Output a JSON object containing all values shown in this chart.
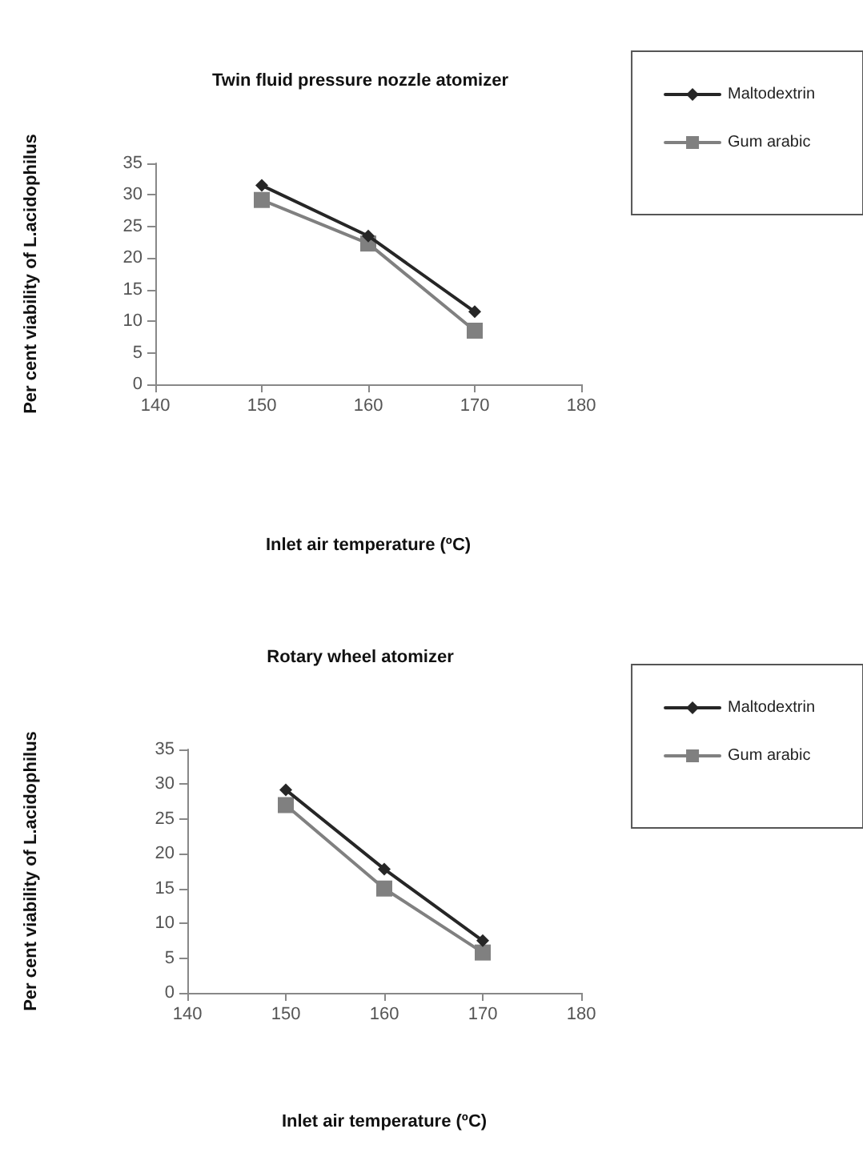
{
  "chart_data": [
    {
      "type": "line",
      "title": "Twin fluid pressure nozzle atomizer",
      "xlabel": "Inlet air temperature (ºC)",
      "ylabel": "Per cent viability of L.acidophilus",
      "x": [
        150,
        160,
        170
      ],
      "series": [
        {
          "name": "Maltodextrin",
          "color": "#262626",
          "marker": "diamond",
          "values": [
            31.5,
            23.5,
            11.5
          ]
        },
        {
          "name": "Gum arabic",
          "color": "#808080",
          "marker": "square",
          "values": [
            29.2,
            22.3,
            8.5
          ]
        }
      ],
      "xlim": [
        140,
        180
      ],
      "xticks": [
        140,
        150,
        160,
        170,
        180
      ],
      "ylim": [
        0,
        35
      ],
      "yticks": [
        0,
        5,
        10,
        15,
        20,
        25,
        30,
        35
      ],
      "grid": false,
      "legend": "top right",
      "line_style": "solid"
    },
    {
      "type": "line",
      "title": "Rotary wheel atomizer",
      "xlabel": "Inlet air temperature (ºC)",
      "ylabel": "Per cent viability of L.acidophilus",
      "x": [
        150,
        160,
        170
      ],
      "series": [
        {
          "name": "Maltodextrin",
          "color": "#262626",
          "marker": "diamond",
          "values": [
            29.2,
            17.8,
            7.5
          ]
        },
        {
          "name": "Gum arabic",
          "color": "#808080",
          "marker": "square",
          "values": [
            27,
            15,
            5.8
          ]
        }
      ],
      "xlim": [
        140,
        180
      ],
      "xticks": [
        140,
        150,
        160,
        170,
        180
      ],
      "ylim": [
        0,
        35
      ],
      "yticks": [
        0,
        5,
        10,
        15,
        20,
        25,
        30,
        35
      ],
      "grid": false,
      "legend": "top right",
      "line_style": "solid"
    }
  ]
}
